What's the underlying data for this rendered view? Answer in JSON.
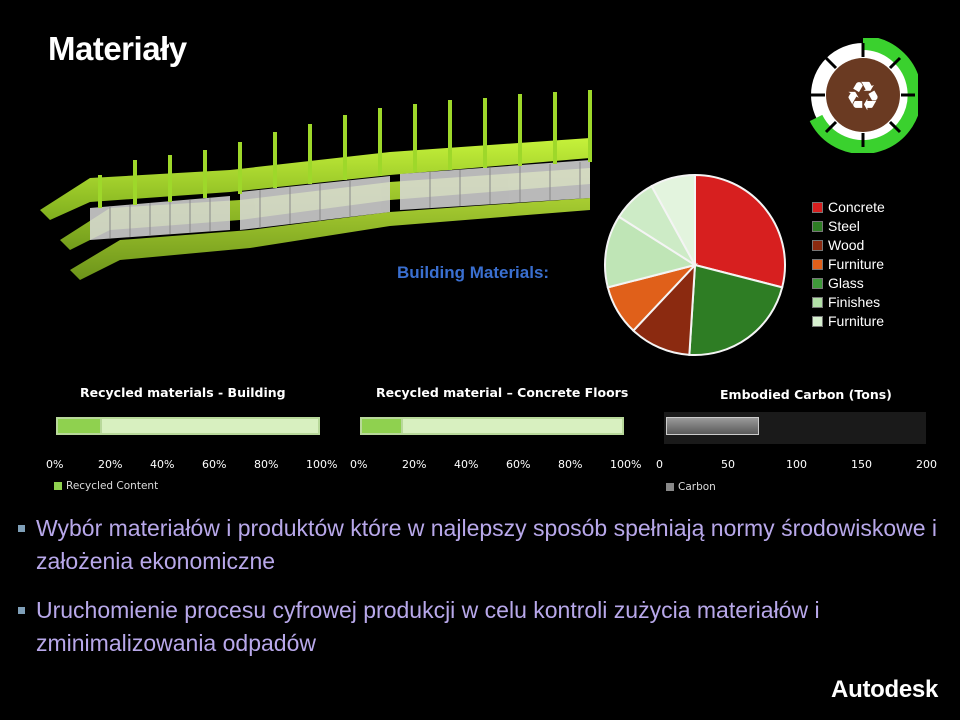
{
  "slide": {
    "title": "Materiały"
  },
  "building_label": "Building Materials:",
  "legend": [
    {
      "label": "Concrete",
      "color": "#d71f1f"
    },
    {
      "label": "Steel",
      "color": "#2e7d24"
    },
    {
      "label": "Wood",
      "color": "#8b2a10"
    },
    {
      "label": "Furniture",
      "color": "#e0601a"
    },
    {
      "label": "Glass",
      "color": "#3f9a3a"
    },
    {
      "label": "Finishes",
      "color": "#b3e0a8"
    },
    {
      "label": "Furniture",
      "color": "#d7f0d0"
    }
  ],
  "chart_data": [
    {
      "type": "pie",
      "title": "",
      "categories": [
        "Concrete",
        "Steel",
        "Wood",
        "Furniture",
        "Glass",
        "Finishes",
        "Furniture"
      ],
      "values": [
        29,
        22,
        11,
        9,
        13,
        8,
        8
      ],
      "colors": [
        "#d71f1f",
        "#2e7d24",
        "#8b2a10",
        "#e0601a",
        "#bfe5b6",
        "#cdebc6",
        "#e3f4de"
      ]
    },
    {
      "type": "bar",
      "title": "Recycled materials - Building",
      "series": [
        {
          "name": "Recycled Content",
          "values": [
            17
          ]
        }
      ],
      "xlim": [
        0,
        100
      ],
      "ticks": [
        "0%",
        "20%",
        "40%",
        "60%",
        "80%",
        "100%"
      ]
    },
    {
      "type": "bar",
      "title": "Recycled material – Concrete Floors",
      "series": [
        {
          "name": "",
          "values": [
            15
          ]
        }
      ],
      "xlim": [
        0,
        100
      ],
      "ticks": [
        "0%",
        "20%",
        "40%",
        "60%",
        "80%",
        "100%"
      ]
    },
    {
      "type": "bar",
      "title": "Embodied Carbon (Tons)",
      "series": [
        {
          "name": "Carbon",
          "values": [
            70
          ]
        }
      ],
      "xlim": [
        0,
        200
      ],
      "ticks": [
        "0",
        "50",
        "100",
        "150",
        "200"
      ]
    }
  ],
  "bar_legend_1": "Recycled Content",
  "bar_legend_3": "Carbon",
  "bullets": [
    "Wybór materiałów i produktów które w najlepszy sposób spełniają normy środowiskowe i założenia ekonomiczne",
    "Uruchomienie procesu cyfrowej produkcji w celu kontroli zużycia materiałów i zminimalizowania odpadów"
  ],
  "brand": "Autodesk"
}
